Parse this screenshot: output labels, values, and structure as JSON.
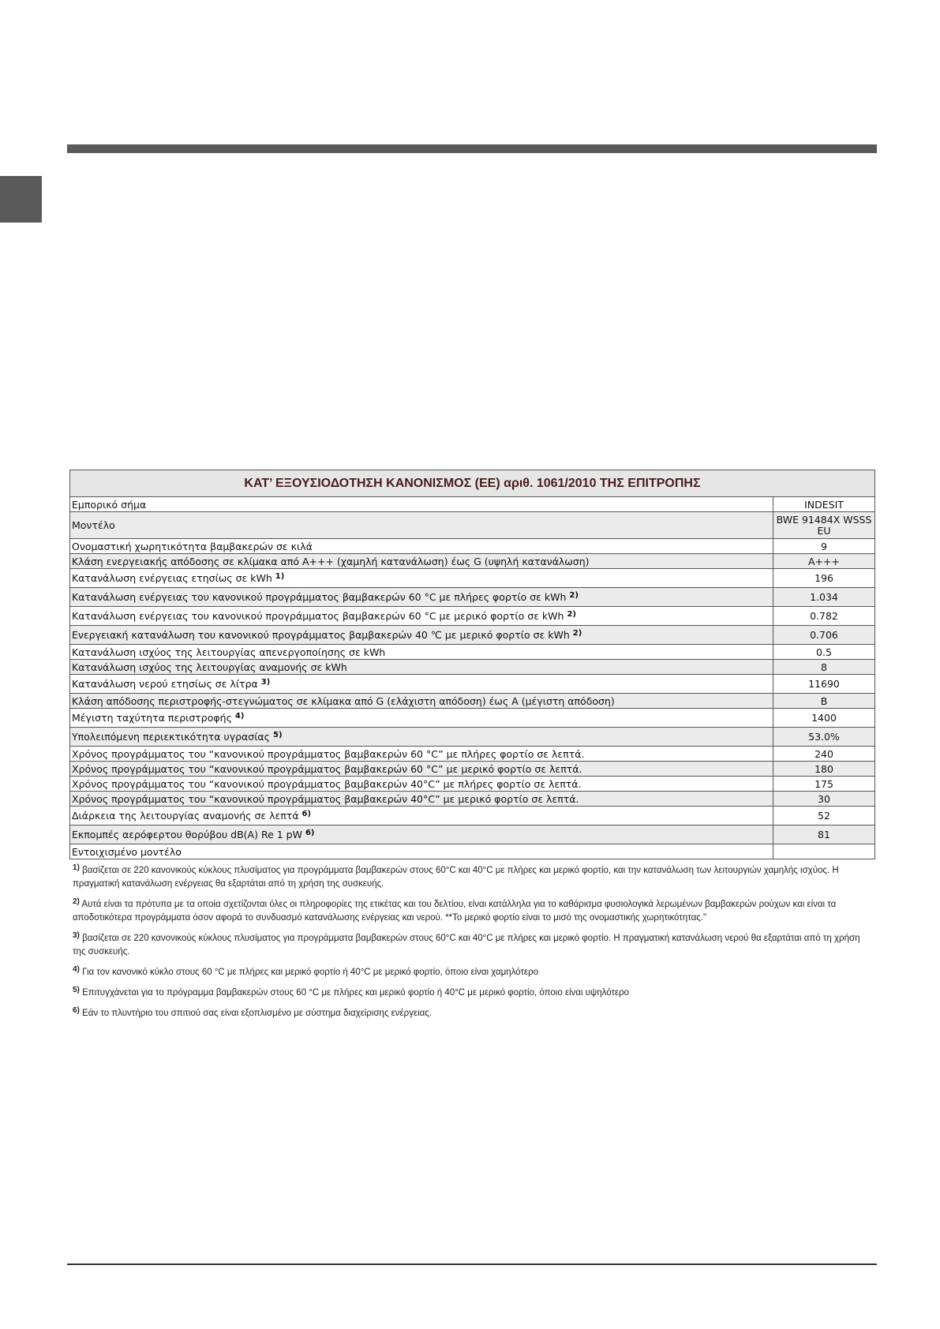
{
  "title": "ΚΑΤ’ ΕΞΟΥΣΙΟΔΟΤΗΣΗ ΚΑΝΟΝΙΣΜΟΣ (ΕΕ) αριθ. 1061/2010 ΤΗΣ ΕΠΙΤΡΟΠΗΣ",
  "rows": [
    {
      "label": "Εμπορικό σήμα",
      "sup": "",
      "value": "INDESIT"
    },
    {
      "label": "Μοντέλο",
      "sup": "",
      "value": "BWE 91484X WSSS EU"
    },
    {
      "label": "Ονομαστική χωρητικότητα βαμβακερών σε κιλά",
      "sup": "",
      "value": "9"
    },
    {
      "label": "Κλάση ενεργειακής απόδοσης σε κλίμακα από A+++ (χαμηλή κατανάλωση) έως G (υψηλή κατανάλωση)",
      "sup": "",
      "value": "A+++"
    },
    {
      "label": "Κατανάλωση ενέργειας ετησίως σε kWh",
      "sup": "1)",
      "value": "196"
    },
    {
      "label": "Κατανάλωση ενέργειας του κανονικού προγράμματος βαμβακερών 60 °C με πλήρες φορτίο σε kWh",
      "sup": "2)",
      "value": "1.034"
    },
    {
      "label": "Κατανάλωση ενέργειας του κανονικού προγράμματος βαμβακερών 60 °C με μερικό φορτίο σε kWh",
      "sup": "2)",
      "value": "0.782"
    },
    {
      "label": "Ενεργειακή κατανάλωση του κανονικού προγράμματος βαμβακερών 40 ℃ με μερικό φορτίο σε kWh",
      "sup": "2)",
      "value": "0.706"
    },
    {
      "label": "Κατανάλωση ισχύος της λειτουργίας απενεργοποίησης σε kWh",
      "sup": "",
      "value": "0.5"
    },
    {
      "label": "Κατανάλωση ισχύος της λειτουργίας αναμονής σε kWh",
      "sup": "",
      "value": "8"
    },
    {
      "label": "Κατανάλωση νερού ετησίως σε λίτρα",
      "sup": "3)",
      "value": "11690"
    },
    {
      "label": "Κλάση απόδοσης περιστροφής-στεγνώματος σε κλίμακα από G (ελάχιστη απόδοση) έως A (μέγιστη απόδοση)",
      "sup": "",
      "value": "B"
    },
    {
      "label": "Μέγιστη ταχύτητα περιστροφής",
      "sup": "4)",
      "value": "1400"
    },
    {
      "label": "Υπολειπόμενη περιεκτικότητα υγρασίας",
      "sup": "5)",
      "value": "53.0%"
    },
    {
      "label": "Χρόνος προγράμματος του “κανονικού προγράμματος βαμβακερών 60 °C” με πλήρες φορτίο σε λεπτά.",
      "sup": "",
      "value": "240"
    },
    {
      "label": "Χρόνος προγράμματος του “κανονικού προγράμματος βαμβακερών 60 °C” με μερικό φορτίο σε λεπτά.",
      "sup": "",
      "value": "180"
    },
    {
      "label": "Χρόνος προγράμματος του “κανονικού προγράμματος βαμβακερών 40°C” με πλήρες φορτίο σε λεπτά.",
      "sup": "",
      "value": "175"
    },
    {
      "label": "Χρόνος προγράμματος του “κανονικού προγράμματος βαμβακερών 40°C” με μερικό φορτίο σε λεπτά.",
      "sup": "",
      "value": "30"
    },
    {
      "label": "Διάρκεια της λειτουργίας αναμονής σε λεπτά",
      "sup": "6)",
      "value": "52"
    },
    {
      "label": "Εκπομπές αερόφερτου θορύβου dB(A) Re 1 pW",
      "sup": "6)",
      "value": "81"
    },
    {
      "label": "Εντοιχισμένο μοντέλο",
      "sup": "",
      "value": ""
    }
  ],
  "footnotes": [
    {
      "mark": "1)",
      "text": "βασίζεται σε 220 κανονικούς κύκλους πλυσίματος για προγράμματα βαμβακερών στους 60°C και 40°C με πλήρες και μερικό φορτίο, και την κατανάλωση των λειτουργιών χαμηλής ισχύος. Η πραγματική κατανάλωση ενέργειας θα εξαρτάται από τη χρήση της συσκευής."
    },
    {
      "mark": "2)",
      "text": "Αυτά είναι τα πρότυπα με τα οποία σχετίζονται όλες οι πληροφορίες της ετικέτας και του δελτίου, είναι κατάλληλα για το καθάρισμα φυσιολογικά λερωμένων βαμβακερών ρούχων και είναι τα αποδοτικότερα προγράμματα όσον αφορά το συνδυασμό κατανάλωσης ενέργειας και νερού. **Το μερικό φορτίο είναι το μισό της ονομαστικής χωρητικότητας.\""
    },
    {
      "mark": "3)",
      "text": "βασίζεται σε 220 κανονικούς κύκλους πλυσίματος για προγράμματα βαμβακερών στους 60°C και 40°C με πλήρες και μερικό φορτίο. Η πραγματική κατανάλωση νερού θα εξαρτάται από τη χρήση της συσκευής."
    },
    {
      "mark": "4)",
      "text": "Για τον κανονικό κύκλο στους 60 °C με πλήρες και μερικό φορτίο ή 40°C με μερικό φορτίο, όποιο είναι χαμηλότερο"
    },
    {
      "mark": "5)",
      "text": "Επιτυγχάνεται για το πρόγραμμα βαμβακερών στους 60 °C με πλήρες και μερικό φορτίο ή 40°C με μερικό φορτίο, όποιο είναι υψηλότερο"
    },
    {
      "mark": "6)",
      "text": "Εάν το πλυντήριο του σπιτιού σας είναι εξοπλισμένο με σύστημα διαχείρισης ενέργειας."
    }
  ],
  "colors": {
    "bar": "#5a5a5a",
    "header_bg": "#e6e6e6",
    "header_text": "#4a1c1c",
    "row_alt": "#ebebeb"
  }
}
